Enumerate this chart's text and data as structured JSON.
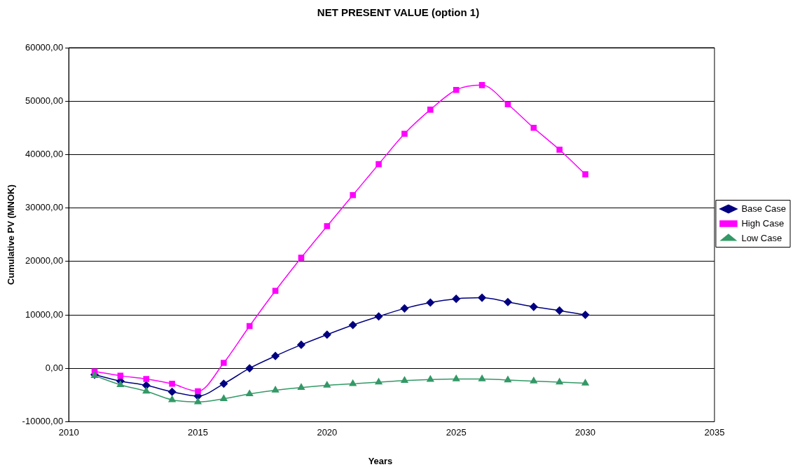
{
  "chart_data": {
    "type": "line",
    "title": "NET PRESENT VALUE (option 1)",
    "xlabel": "Years",
    "ylabel": "Cumulative PV (MNOK)",
    "x": [
      2011,
      2012,
      2013,
      2014,
      2015,
      2016,
      2017,
      2018,
      2019,
      2020,
      2021,
      2022,
      2023,
      2024,
      2025,
      2026,
      2027,
      2028,
      2029,
      2030
    ],
    "series": [
      {
        "name": "Base Case",
        "color": "#000080",
        "marker": "diamond",
        "values": [
          -1200,
          -2400,
          -3200,
          -4400,
          -5200,
          -2900,
          0,
          2300,
          4400,
          6300,
          8100,
          9700,
          11200,
          12300,
          13000,
          13200,
          12400,
          11500,
          10800,
          10000
        ]
      },
      {
        "name": "High Case",
        "color": "#ff00ff",
        "marker": "square",
        "values": [
          -600,
          -1400,
          -2000,
          -2900,
          -4300,
          1000,
          7900,
          14500,
          20700,
          26600,
          32400,
          38200,
          43900,
          48400,
          52100,
          53000,
          49400,
          45000,
          40900,
          36300
        ]
      },
      {
        "name": "Low Case",
        "color": "#339966",
        "marker": "triangle",
        "values": [
          -1400,
          -3100,
          -4300,
          -5900,
          -6300,
          -5700,
          -4800,
          -4100,
          -3600,
          -3200,
          -2900,
          -2600,
          -2300,
          -2100,
          -2000,
          -2000,
          -2200,
          -2400,
          -2600,
          -2800
        ]
      }
    ],
    "xlim": [
      2010,
      2035
    ],
    "xticks": [
      2010,
      2015,
      2020,
      2025,
      2030,
      2035
    ],
    "ylim": [
      -10000,
      60000
    ],
    "yticks": [
      {
        "value": -10000,
        "label": "-10000,00"
      },
      {
        "value": 0,
        "label": "0,00"
      },
      {
        "value": 10000,
        "label": "10000,00"
      },
      {
        "value": 20000,
        "label": "20000,00"
      },
      {
        "value": 30000,
        "label": "30000,00"
      },
      {
        "value": 40000,
        "label": "40000,00"
      },
      {
        "value": 50000,
        "label": "50000,00"
      },
      {
        "value": 60000,
        "label": "60000,00"
      }
    ],
    "grid": "y",
    "legend": "right",
    "line_style": "solid"
  }
}
